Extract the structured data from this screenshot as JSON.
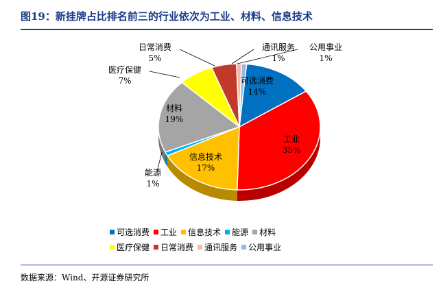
{
  "figure": {
    "title": "图19：新挂牌占比排名前三的行业依次为工业、材料、信息技术",
    "source": "数据来源：Wind、开源证券研究所"
  },
  "chart_data": {
    "type": "pie",
    "style": "3d",
    "labels": [
      "可选消费",
      "工业",
      "信息技术",
      "能源",
      "材料",
      "医疗保健",
      "日常消费",
      "通讯服务",
      "公用事业"
    ],
    "values": [
      14,
      35,
      17,
      1,
      19,
      7,
      5,
      1,
      1
    ],
    "value_labels": [
      "14%",
      "35%",
      "17%",
      "1%",
      "19%",
      "7%",
      "5%",
      "1%",
      "1%"
    ],
    "colors": [
      "#0070c0",
      "#ff0000",
      "#ffc000",
      "#00b0f0",
      "#a5a5a5",
      "#ffff00",
      "#c0392b",
      "#f4b6a8",
      "#9bb7e0"
    ],
    "legend_position": "bottom",
    "legend_rows": [
      [
        0,
        1,
        2,
        3,
        4
      ],
      [
        5,
        6,
        7,
        8
      ]
    ]
  }
}
